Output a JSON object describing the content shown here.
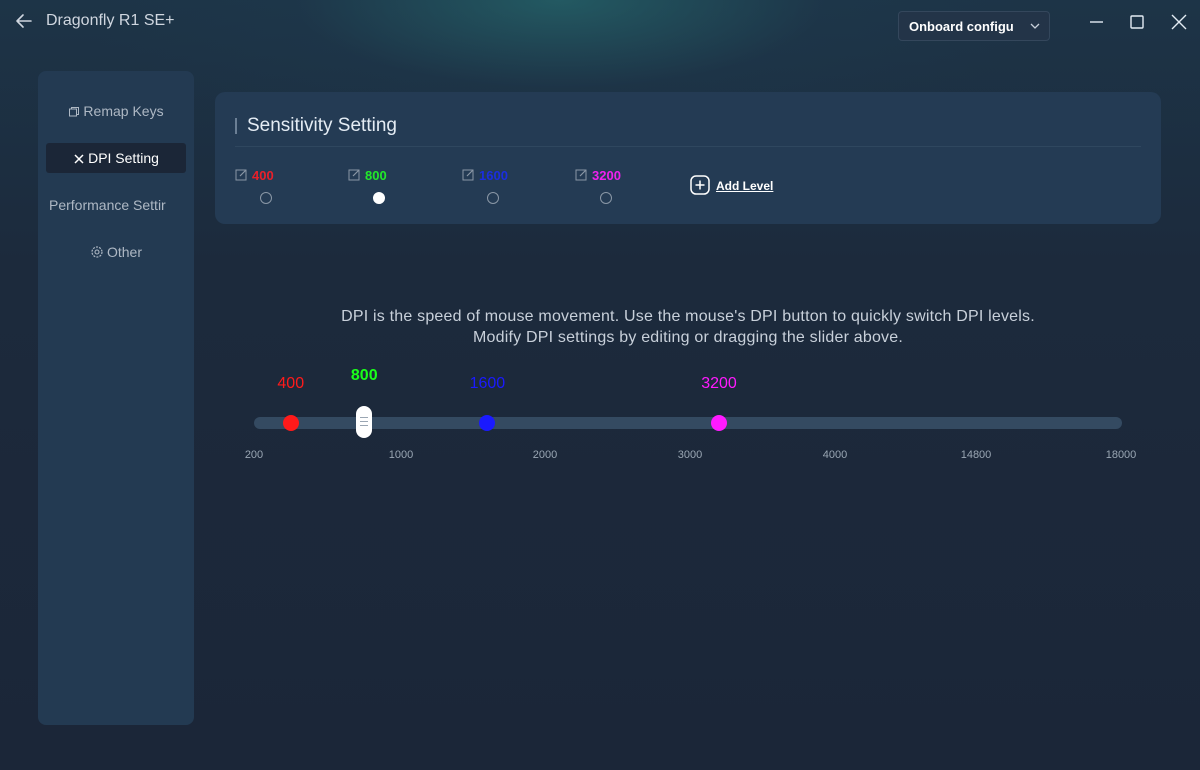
{
  "app": {
    "title": "Dragonfly R1 SE+",
    "icons": {
      "back": "back-arrow-icon",
      "minimize": "minimize-icon",
      "maximize": "maximize-icon",
      "close": "close-icon"
    }
  },
  "config_select": {
    "value": "Onboard configu",
    "icon": "chevron-down-icon"
  },
  "sidebar": {
    "items": [
      {
        "label": "Remap Keys",
        "icon": "remap-icon",
        "active": false
      },
      {
        "label": "DPI Setting",
        "icon": "crosshair-icon",
        "active": true
      },
      {
        "label": "Performance Settir",
        "icon": "",
        "active": false
      },
      {
        "label": "Other",
        "icon": "gear-icon",
        "active": false
      }
    ]
  },
  "sensitivity": {
    "title": "Sensitivity Setting",
    "levels": [
      {
        "value": "400",
        "color": "#e8202a",
        "selected": false
      },
      {
        "value": "800",
        "color": "#22e82a",
        "selected": true
      },
      {
        "value": "1600",
        "color": "#1a2ee0",
        "selected": false
      },
      {
        "value": "3200",
        "color": "#ee22ee",
        "selected": false
      }
    ],
    "add_level_label": "Add Level",
    "edit_icon": "edit-icon",
    "add_icon": "plus-square-icon"
  },
  "description": {
    "line1": "DPI is the speed of mouse movement. Use the mouse's DPI button to quickly switch DPI levels.",
    "line2": "Modify DPI settings by editing or dragging the slider above."
  },
  "slider": {
    "ticks": [
      "200",
      "1000",
      "2000",
      "3000",
      "4000",
      "14800",
      "18000"
    ],
    "thumbs": [
      {
        "label": "400",
        "value": 400,
        "color": "#ff1a1a",
        "active": false
      },
      {
        "label": "800",
        "value": 800,
        "color": "#1aff1a",
        "active": true
      },
      {
        "label": "1600",
        "value": 1600,
        "color": "#1a1aff",
        "active": false
      },
      {
        "label": "3200",
        "value": 3200,
        "color": "#ff1aff",
        "active": false
      }
    ]
  }
}
